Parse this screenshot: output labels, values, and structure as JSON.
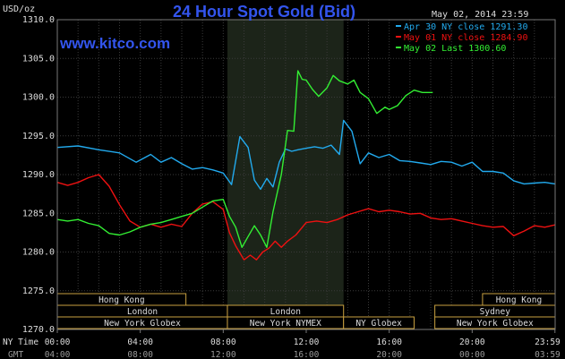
{
  "chart_data": {
    "type": "line",
    "title": "24 Hour Spot Gold (Bid)",
    "site": "www.kitco.com",
    "date_label": "May 02, 2014 23:59",
    "ylabel": "USD/oz",
    "ylim": [
      1270,
      1310
    ],
    "y_ticks": [
      "1310.0",
      "1305.0",
      "1300.0",
      "1295.0",
      "1290.0",
      "1285.0",
      "1280.0",
      "1275.0",
      "1270.0"
    ],
    "x_label_ny": "NY Time",
    "x_label_gmt": "GMT",
    "x_ticks_ny": [
      "00:00",
      "04:00",
      "08:00",
      "12:00",
      "16:00",
      "20:00",
      "23:59"
    ],
    "x_ticks_gmt": [
      "04:00",
      "08:00",
      "12:00",
      "16:00",
      "20:00",
      "00:00",
      "03:59"
    ],
    "highlight_hours": [
      8.2,
      13.8
    ],
    "grid": true,
    "legend_position": "top-right",
    "sessions": [
      {
        "name": "Hong Kong",
        "start": 0,
        "end": 6.2,
        "row": 0
      },
      {
        "name": "Hong Kong",
        "start": 20.5,
        "end": 24,
        "row": 0
      },
      {
        "name": "London",
        "start": 0,
        "end": 8.2,
        "row": 1
      },
      {
        "name": "London",
        "start": 8.2,
        "end": 13.8,
        "row": 1
      },
      {
        "name": "Sydney",
        "start": 18.2,
        "end": 24,
        "row": 1
      },
      {
        "name": "New York Globex",
        "start": 0,
        "end": 8.2,
        "row": 2
      },
      {
        "name": "New York NYMEX",
        "start": 8.2,
        "end": 13.8,
        "row": 2
      },
      {
        "name": "NY Globex",
        "start": 13.8,
        "end": 17.2,
        "row": 2
      },
      {
        "name": "New York Globex",
        "start": 18.2,
        "end": 24,
        "row": 2
      }
    ],
    "series": [
      {
        "name": "Apr 30 NY close 1291.30",
        "color": "#22aaee",
        "x": [
          0,
          1,
          2,
          3,
          3.8,
          4.5,
          5,
          5.5,
          6,
          6.5,
          7,
          7.5,
          8,
          8.4,
          8.8,
          9.2,
          9.5,
          9.8,
          10.1,
          10.4,
          10.7,
          11,
          11.3,
          11.6,
          12,
          12.4,
          12.8,
          13.2,
          13.6,
          13.8,
          14.2,
          14.6,
          15,
          15.5,
          16,
          16.5,
          17,
          17.5,
          18,
          18.5,
          19,
          19.5,
          20,
          20.5,
          21,
          21.5,
          22,
          22.5,
          23,
          23.5,
          23.99
        ],
        "y": [
          1293.5,
          1293.7,
          1293.2,
          1292.8,
          1291.6,
          1292.6,
          1291.6,
          1292.2,
          1291.4,
          1290.7,
          1290.9,
          1290.6,
          1290.2,
          1288.7,
          1294.9,
          1293.5,
          1289.3,
          1288.1,
          1289.5,
          1288.4,
          1291.6,
          1293.3,
          1293.0,
          1293.2,
          1293.4,
          1293.6,
          1293.4,
          1293.8,
          1292.6,
          1297.0,
          1295.6,
          1291.4,
          1292.8,
          1292.2,
          1292.6,
          1291.8,
          1291.7,
          1291.5,
          1291.3,
          1291.7,
          1291.6,
          1291.1,
          1291.6,
          1290.4,
          1290.4,
          1290.2,
          1289.2,
          1288.8,
          1288.9,
          1289.0,
          1288.8
        ]
      },
      {
        "name": "May 01 NY close 1284.90",
        "color": "#ee1111",
        "x": [
          0,
          0.5,
          1,
          1.5,
          2,
          2.5,
          3,
          3.5,
          4,
          4.5,
          5,
          5.5,
          6,
          6.5,
          7,
          7.5,
          8,
          8.3,
          8.6,
          9,
          9.3,
          9.6,
          9.9,
          10.2,
          10.5,
          10.8,
          11.1,
          11.5,
          12,
          12.5,
          13,
          13.5,
          14,
          14.5,
          15,
          15.5,
          16,
          16.5,
          17,
          17.5,
          18,
          18.5,
          19,
          19.5,
          20,
          20.5,
          21,
          21.5,
          22,
          22.5,
          23,
          23.5,
          23.99
        ],
        "y": [
          1289.0,
          1288.6,
          1289.0,
          1289.6,
          1290.0,
          1288.5,
          1286.1,
          1284.0,
          1283.2,
          1283.6,
          1283.2,
          1283.6,
          1283.3,
          1285.0,
          1286.2,
          1286.5,
          1285.5,
          1282.5,
          1280.8,
          1279.0,
          1279.6,
          1279.0,
          1280.0,
          1280.5,
          1281.4,
          1280.6,
          1281.4,
          1282.2,
          1283.8,
          1284.0,
          1283.8,
          1284.2,
          1284.8,
          1285.2,
          1285.6,
          1285.2,
          1285.4,
          1285.2,
          1284.9,
          1285.0,
          1284.4,
          1284.2,
          1284.3,
          1284.0,
          1283.7,
          1283.4,
          1283.2,
          1283.3,
          1282.1,
          1282.7,
          1283.4,
          1283.2,
          1283.5
        ]
      },
      {
        "name": "May 02 Last 1300.60",
        "color": "#33ee33",
        "x": [
          0,
          0.5,
          1,
          1.5,
          2,
          2.5,
          3,
          3.5,
          4,
          4.5,
          5,
          5.5,
          6,
          6.5,
          7,
          7.5,
          8,
          8.3,
          8.6,
          8.9,
          9.2,
          9.5,
          9.8,
          10.1,
          10.4,
          10.8,
          11.1,
          11.4,
          11.6,
          11.8,
          12,
          12.3,
          12.6,
          13,
          13.3,
          13.6,
          14,
          14.3,
          14.6,
          15,
          15.4,
          15.8,
          16,
          16.4,
          16.8,
          17.2,
          17.6,
          18.1
        ],
        "y": [
          1284.2,
          1284.0,
          1284.2,
          1283.7,
          1283.4,
          1282.4,
          1282.2,
          1282.6,
          1283.2,
          1283.6,
          1283.8,
          1284.2,
          1284.6,
          1285.0,
          1285.8,
          1286.6,
          1286.8,
          1284.6,
          1283.2,
          1280.6,
          1282.0,
          1283.4,
          1282.2,
          1280.6,
          1285.2,
          1290.0,
          1295.7,
          1295.6,
          1303.4,
          1302.3,
          1302.2,
          1301.0,
          1300.1,
          1301.2,
          1302.8,
          1302.1,
          1301.7,
          1302.2,
          1300.6,
          1299.8,
          1297.9,
          1298.7,
          1298.4,
          1298.9,
          1300.2,
          1300.9,
          1300.6,
          1300.6
        ]
      }
    ]
  }
}
